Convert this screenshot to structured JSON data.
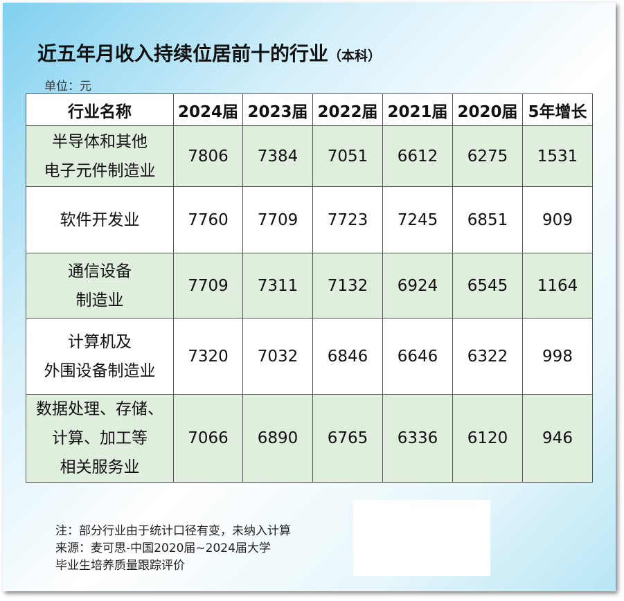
{
  "header": {
    "title": "近五年月收入持续位居前十的行业",
    "subtitle": "（本科）",
    "unit": "单位：元"
  },
  "table": {
    "columns": [
      "行业名称",
      "2024届",
      "2023届",
      "2022届",
      "2021届",
      "2020届",
      "5年增长"
    ],
    "rows": [
      {
        "name": [
          "半导体和其他",
          "电子元件制造业"
        ],
        "values": [
          7806,
          7384,
          7051,
          6612,
          6275,
          1531
        ]
      },
      {
        "name": [
          "软件开发业"
        ],
        "values": [
          7760,
          7709,
          7723,
          7245,
          6851,
          909
        ]
      },
      {
        "name": [
          "通信设备",
          "制造业"
        ],
        "values": [
          7709,
          7311,
          7132,
          6924,
          6545,
          1164
        ]
      },
      {
        "name": [
          "计算机及",
          "外围设备制造业"
        ],
        "values": [
          7320,
          7032,
          6846,
          6646,
          6322,
          998
        ]
      },
      {
        "name": [
          "数据处理、存储、",
          "计算、加工等",
          "相关服务业"
        ],
        "values": [
          7066,
          6890,
          6765,
          6336,
          6120,
          946
        ]
      }
    ]
  },
  "notes": [
    "注：部分行业由于统计口径有变，未纳入计算",
    "来源：麦可思-中国2020届~2024届大学",
    "毕业生培养质量跟踪评价"
  ]
}
